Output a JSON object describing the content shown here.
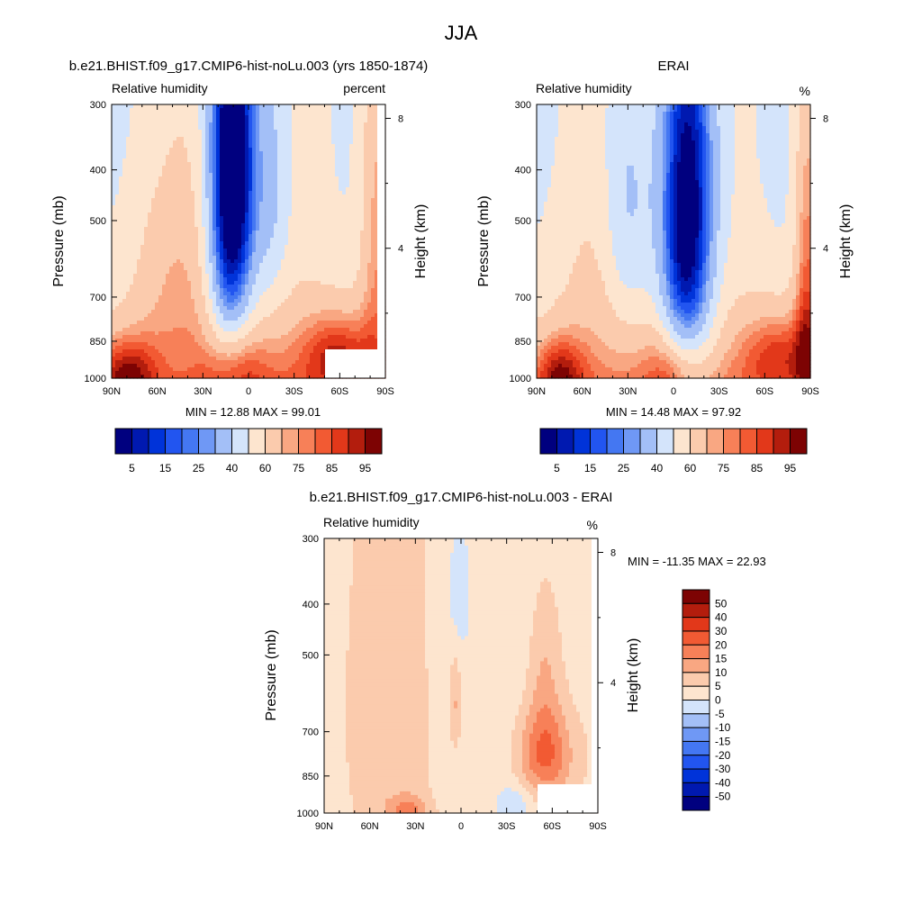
{
  "figure": {
    "title": "JJA"
  },
  "palettes": {
    "abs": [
      "#00007f",
      "#0019b0",
      "#0033d9",
      "#2255f0",
      "#4477f2",
      "#6f98f5",
      "#a3bff7",
      "#d4e4fb",
      "#fde5cf",
      "#fbcbad",
      "#f9a782",
      "#f78058",
      "#f25a33",
      "#e2381a",
      "#b31d0d",
      "#7d0303"
    ],
    "diff": [
      "#00007f",
      "#0019b0",
      "#0033d9",
      "#2255f0",
      "#4477f2",
      "#6f98f5",
      "#a3bff7",
      "#d4e4fb",
      "#fde5cf",
      "#fbcbad",
      "#f9a782",
      "#f78058",
      "#f25a33",
      "#e2381a",
      "#b31d0d",
      "#7d0303"
    ]
  },
  "chart_data": [
    {
      "type": "heatmap",
      "title": "b.e21.BHIST.f09_g17.CMIP6-hist-noLu.003 (yrs 1850-1874)",
      "left_label": "Relative humidity",
      "right_label": "percent",
      "xlabel": "",
      "ylabel": "Pressure (mb)",
      "y2label": "Height (km)",
      "x_ticks": [
        "90N",
        "60N",
        "30N",
        "0",
        "30S",
        "60S",
        "90S"
      ],
      "y_ticks": [
        "300",
        "400",
        "500",
        "700",
        "850",
        "1000"
      ],
      "y2_ticks": [
        "8",
        "4"
      ],
      "min_max": "MIN = 12.88  MAX = 99.01",
      "colorbar_labels": [
        "5",
        "15",
        "25",
        "40",
        "60",
        "75",
        "85",
        "95"
      ],
      "levels": [
        5,
        10,
        15,
        20,
        25,
        30,
        40,
        50,
        60,
        70,
        75,
        80,
        85,
        90,
        95
      ],
      "features": [
        {
          "lat": 50,
          "p": 620,
          "sx": 22,
          "sp": 260,
          "amp": 15
        },
        {
          "lat": 10,
          "p": 400,
          "sx": 11,
          "sp": 280,
          "amp": -60
        },
        {
          "lat": -15,
          "p": 450,
          "sx": 9,
          "sp": 200,
          "amp": -18
        },
        {
          "lat": 15,
          "p": 600,
          "sx": 10,
          "sp": 350,
          "amp": -15
        },
        {
          "lat": -60,
          "p": 900,
          "sx": 18,
          "sp": 120,
          "amp": 28
        },
        {
          "lat": 80,
          "p": 980,
          "sx": 14,
          "sp": 110,
          "amp": 30
        },
        {
          "lat": 10,
          "p": 950,
          "sx": 14,
          "sp": 110,
          "amp": 18
        },
        {
          "lat": -85,
          "p": 500,
          "sx": 8,
          "sp": 350,
          "amp": 25
        }
      ]
    },
    {
      "type": "heatmap",
      "title": "ERAI",
      "left_label": "Relative humidity",
      "right_label": "%",
      "xlabel": "",
      "ylabel": "Pressure (mb)",
      "y2label": "Height (km)",
      "x_ticks": [
        "90N",
        "60N",
        "30N",
        "0",
        "30S",
        "60S",
        "90S"
      ],
      "y_ticks": [
        "300",
        "400",
        "500",
        "700",
        "850",
        "1000"
      ],
      "y2_ticks": [
        "8",
        "4"
      ],
      "min_max": "MIN = 14.48  MAX = 97.92",
      "colorbar_labels": [
        "5",
        "15",
        "25",
        "40",
        "60",
        "75",
        "85",
        "95"
      ],
      "levels": [
        5,
        10,
        15,
        20,
        25,
        30,
        40,
        50,
        60,
        70,
        75,
        80,
        85,
        90,
        95
      ],
      "features": [
        {
          "lat": 50,
          "p": 600,
          "sx": 22,
          "sp": 300,
          "amp": 10
        },
        {
          "lat": 30,
          "p": 500,
          "sx": 12,
          "sp": 240,
          "amp": -22
        },
        {
          "lat": -10,
          "p": 480,
          "sx": 13,
          "sp": 320,
          "amp": -48
        },
        {
          "lat": -5,
          "p": 650,
          "sx": 12,
          "sp": 320,
          "amp": -18
        },
        {
          "lat": -70,
          "p": 900,
          "sx": 18,
          "sp": 120,
          "amp": 25
        },
        {
          "lat": 75,
          "p": 980,
          "sx": 12,
          "sp": 110,
          "amp": 28
        },
        {
          "lat": 0,
          "p": 950,
          "sx": 12,
          "sp": 110,
          "amp": 18
        },
        {
          "lat": -88,
          "p": 650,
          "sx": 6,
          "sp": 400,
          "amp": 30
        }
      ]
    },
    {
      "type": "heatmap",
      "title": "b.e21.BHIST.f09_g17.CMIP6-hist-noLu.003 - ERAI",
      "left_label": "Relative humidity",
      "right_label": "%",
      "xlabel": "",
      "ylabel": "Pressure (mb)",
      "y2label": "Height (km)",
      "x_ticks": [
        "90N",
        "60N",
        "30N",
        "0",
        "30S",
        "60S",
        "90S"
      ],
      "y_ticks": [
        "300",
        "400",
        "500",
        "700",
        "850",
        "1000"
      ],
      "y2_ticks": [
        "8",
        "4"
      ],
      "min_max": "MIN = -11.35  MAX =  22.93",
      "colorbar_labels": [
        "50",
        "40",
        "30",
        "20",
        "15",
        "10",
        "5",
        "0",
        "-5",
        "-10",
        "-15",
        "-20",
        "-30",
        "-40",
        "-50"
      ],
      "levels": [
        -50,
        -40,
        -30,
        -20,
        -15,
        -10,
        -5,
        0,
        5,
        10,
        15,
        20,
        30,
        40,
        50
      ],
      "features": [
        {
          "lat": 40,
          "p": 650,
          "sx": 28,
          "sp": 350,
          "amp": 4
        },
        {
          "lat": 10,
          "p": 600,
          "sx": 10,
          "sp": 300,
          "amp": -6
        },
        {
          "lat": 0,
          "p": 380,
          "sx": 4,
          "sp": 60,
          "amp": -6
        },
        {
          "lat": -55,
          "p": 780,
          "sx": 13,
          "sp": 110,
          "amp": 18
        },
        {
          "lat": -55,
          "p": 550,
          "sx": 8,
          "sp": 150,
          "amp": 8
        },
        {
          "lat": 4,
          "p": 620,
          "sx": 3,
          "sp": 100,
          "amp": 10
        },
        {
          "lat": -35,
          "p": 960,
          "sx": 8,
          "sp": 60,
          "amp": -6
        },
        {
          "lat": 35,
          "p": 985,
          "sx": 10,
          "sp": 40,
          "amp": 10
        }
      ]
    }
  ]
}
